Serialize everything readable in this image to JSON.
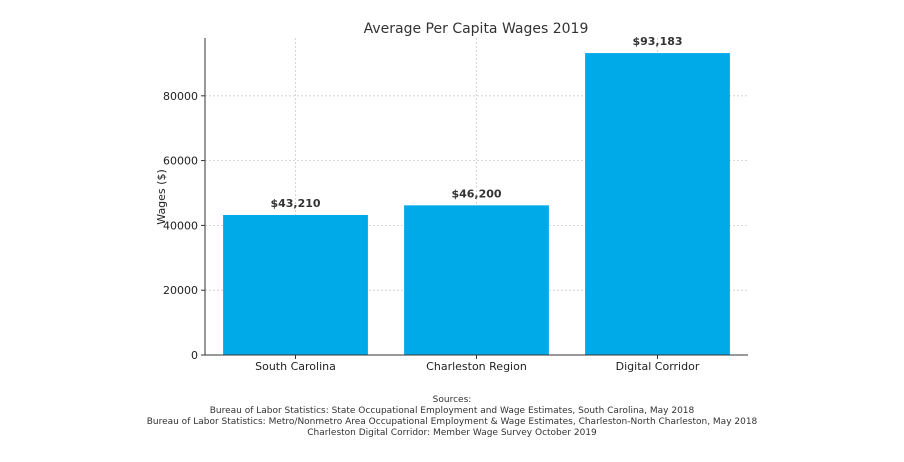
{
  "chart_data": {
    "type": "bar",
    "title": "Average Per Capita Wages 2019",
    "xlabel": "",
    "ylabel": "Wages ($)",
    "categories": [
      "South Carolina",
      "Charleston Region",
      "Digital Corridor"
    ],
    "values": [
      43210,
      46200,
      93183
    ],
    "value_labels": [
      "$43,210",
      "$46,200",
      "$93,183"
    ],
    "ylim": [
      0,
      97842
    ],
    "yticks": [
      0,
      20000,
      40000,
      60000,
      80000
    ],
    "ytick_labels": [
      "0",
      "20000",
      "40000",
      "60000",
      "80000"
    ],
    "grid": true,
    "bar_color": "#00a9e8"
  },
  "sources": {
    "heading": "Sources:",
    "lines": [
      "Bureau of Labor Statistics: State Occupational Employment and Wage Estimates, South Carolina, May 2018",
      "Bureau of Labor Statistics: Metro/Nonmetro Area Occupational Employment & Wage Estimates, Charleston-North Charleston, May 2018",
      "Charleston Digital Corridor: Member Wage Survey October 2019"
    ]
  }
}
